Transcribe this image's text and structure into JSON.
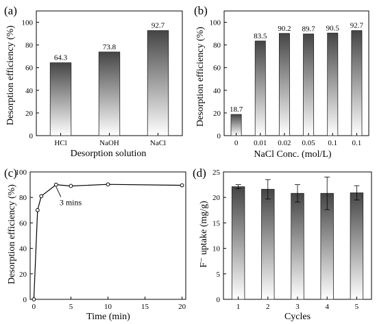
{
  "chart_data": [
    {
      "panel": "(a)",
      "type": "bar",
      "categories": [
        "HCl",
        "NaOH",
        "NaCl"
      ],
      "values": [
        64.3,
        73.8,
        92.7
      ],
      "data_labels": [
        "64.3",
        "73.8",
        "92.7"
      ],
      "xlabel": "Desorption solution",
      "ylabel": "Desorption efficiency (%)",
      "ylim": [
        0,
        110
      ],
      "yticks": [
        "0",
        "20",
        "40",
        "60",
        "80",
        "100"
      ],
      "grid": false
    },
    {
      "panel": "(b)",
      "type": "bar",
      "categories": [
        "0",
        "0.01",
        "0.02",
        "0.05",
        "0.1",
        "0.1"
      ],
      "values": [
        18.7,
        83.5,
        90.2,
        89.7,
        90.5,
        92.7
      ],
      "data_labels": [
        "18.7",
        "83.5",
        "90.2",
        "89.7",
        "90.5",
        "92.7"
      ],
      "xlabel": "NaCl Conc. (mol/L)",
      "ylabel": "Desorption efficiency (%)",
      "ylim": [
        0,
        110
      ],
      "yticks": [
        "0",
        "20",
        "40",
        "60",
        "80",
        "100"
      ],
      "grid": false
    },
    {
      "panel": "(c)",
      "type": "line",
      "x": [
        0,
        0.5,
        1,
        3,
        5,
        10,
        20
      ],
      "y": [
        0,
        70,
        81,
        90,
        89,
        90.2,
        89.5
      ],
      "xlabel": "Time (min)",
      "ylabel": "Desorption efficiency (%)",
      "xlim": [
        -0.5,
        20.5
      ],
      "ylim": [
        0,
        100
      ],
      "xticks": [
        "0",
        "5",
        "10",
        "15",
        "20"
      ],
      "yticks": [
        "0",
        "20",
        "40",
        "60",
        "80",
        "100"
      ],
      "annotation": "3 mins",
      "grid": false
    },
    {
      "panel": "(d)",
      "type": "bar",
      "categories": [
        "1",
        "2",
        "3",
        "4",
        "5"
      ],
      "values": [
        22.1,
        21.6,
        20.8,
        20.8,
        20.9
      ],
      "errors": [
        0.4,
        1.9,
        1.7,
        3.2,
        1.4
      ],
      "xlabel": "Cycles",
      "ylabel": "F⁻ uptake (mg/g)",
      "ylim": [
        0,
        25
      ],
      "yticks": [
        "0",
        "5",
        "10",
        "15",
        "20",
        "25"
      ],
      "grid": false
    }
  ]
}
